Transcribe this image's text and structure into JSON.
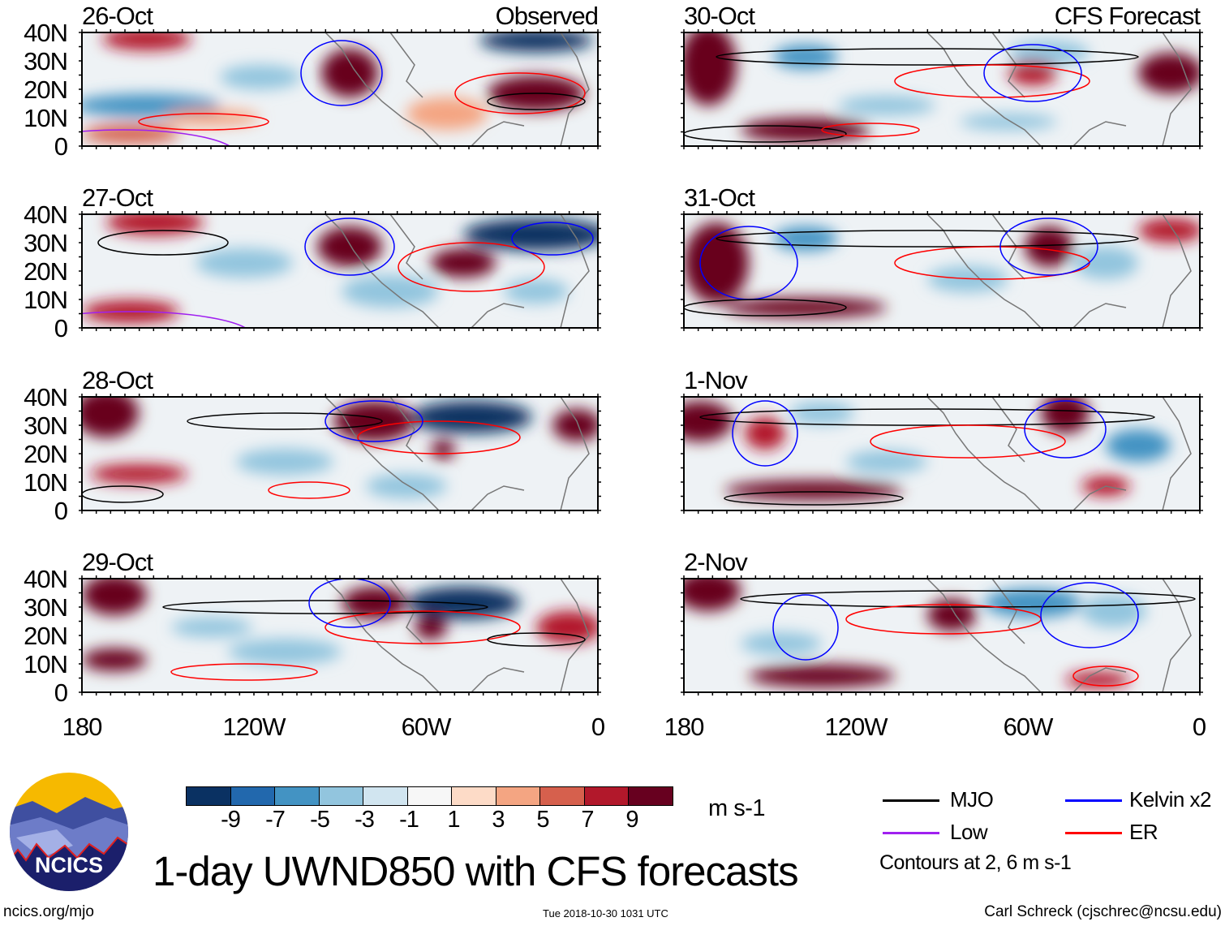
{
  "panels": [
    {
      "date": "26-Oct",
      "label": "Observed"
    },
    {
      "date": "27-Oct",
      "label": ""
    },
    {
      "date": "28-Oct",
      "label": ""
    },
    {
      "date": "29-Oct",
      "label": ""
    },
    {
      "date": "30-Oct",
      "label": "CFS Forecast"
    },
    {
      "date": "31-Oct",
      "label": ""
    },
    {
      "date": "1-Nov",
      "label": ""
    },
    {
      "date": "2-Nov",
      "label": ""
    }
  ],
  "y_ticks": [
    "40N",
    "30N",
    "20N",
    "10N",
    "0"
  ],
  "x_ticks": [
    "180",
    "120W",
    "60W",
    "0"
  ],
  "colorbar": {
    "colors": [
      "#0a3162",
      "#2268ad",
      "#4393c3",
      "#92c5de",
      "#d1e5f0",
      "#f7f7f7",
      "#fddbc7",
      "#f4a582",
      "#d6604d",
      "#b2182b",
      "#67001f"
    ],
    "labels": [
      "-9",
      "-7",
      "-5",
      "-3",
      "-1",
      "1",
      "3",
      "5",
      "7",
      "9"
    ],
    "units": "m s-1"
  },
  "legend": {
    "items": [
      {
        "label": "MJO",
        "color": "#000000"
      },
      {
        "label": "Kelvin x2",
        "color": "#0000ff"
      },
      {
        "label": "Low",
        "color": "#a020f0"
      },
      {
        "label": "ER",
        "color": "#ff0000"
      }
    ],
    "note": "Contours at 2, 6 m s-1"
  },
  "title": "1-day UWND850 with CFS forecasts",
  "logo_text": "NCICS",
  "footer": {
    "left": "ncics.org/mjo",
    "center": "Tue 2018-10-30 1031 UTC",
    "right": "Carl Schreck (cjschrec@ncsu.edu)"
  }
}
